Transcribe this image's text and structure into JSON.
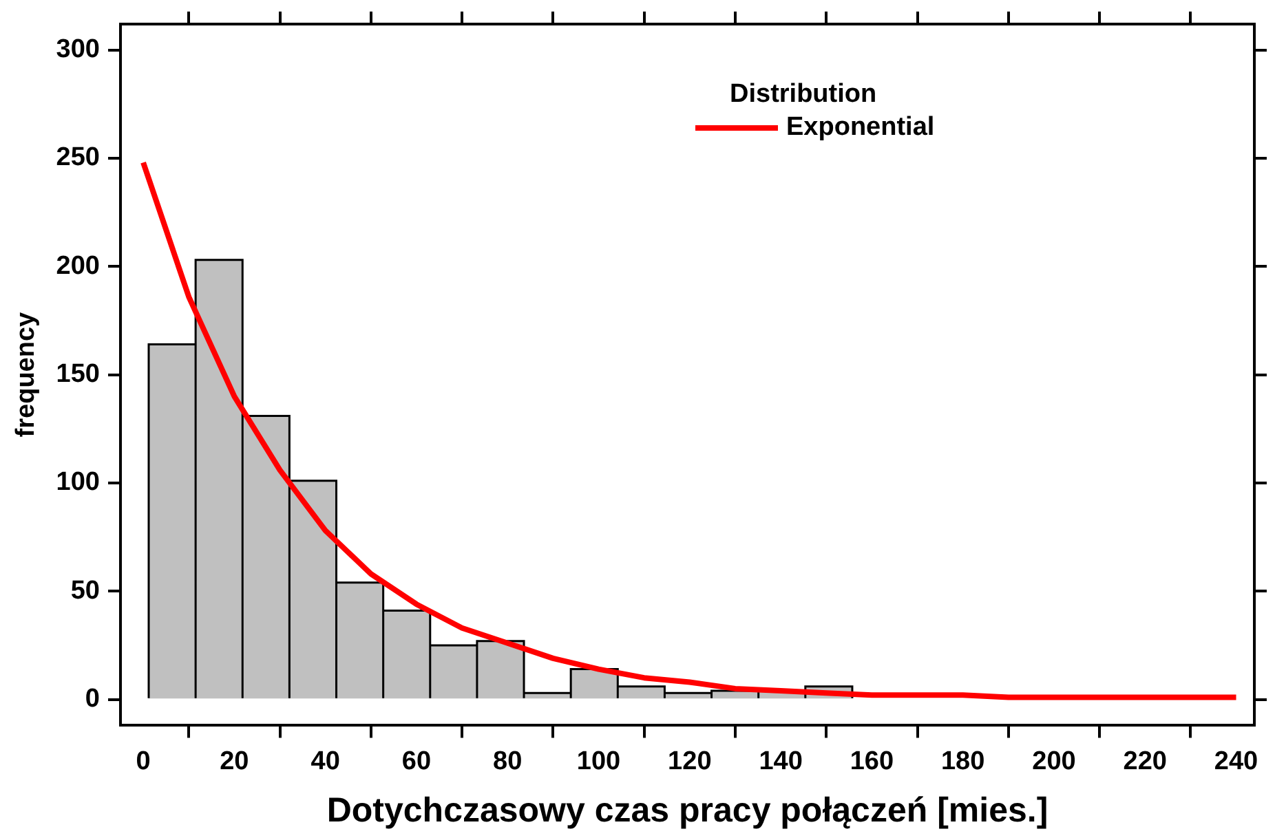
{
  "chart_data": {
    "type": "histogram",
    "xlabel": "Dotychczasowy czas pracy połączeń [mies.]",
    "ylabel": "frequency",
    "legend_title": "Distribution",
    "bins": [
      1.2,
      11.5,
      21.8,
      32.1,
      42.4,
      52.7,
      63.0,
      73.3,
      83.6,
      93.9,
      104.2,
      114.5,
      124.8,
      135.1,
      145.4,
      155.7
    ],
    "values": [
      164,
      203,
      131,
      101,
      54,
      41,
      25,
      27,
      3,
      14,
      6,
      3,
      4,
      4,
      6
    ],
    "color": "#c0c0c0",
    "series": [
      {
        "name": "Exponential",
        "type": "line",
        "color": "#ff0000",
        "x": [
          0,
          10,
          20,
          30,
          40,
          50,
          60,
          70,
          80,
          90,
          100,
          110,
          120,
          130,
          140,
          150,
          160,
          170,
          180,
          190,
          200,
          210,
          220,
          230,
          240
        ],
        "values": [
          248,
          186,
          140,
          106,
          78,
          58,
          44,
          33,
          26,
          19,
          14,
          10,
          8,
          5,
          4,
          3,
          2,
          2,
          2,
          1,
          1,
          1,
          1,
          1,
          1
        ]
      }
    ],
    "xlim": [
      -5,
      244
    ],
    "xticks": [
      0,
      20,
      40,
      60,
      80,
      100,
      120,
      140,
      160,
      180,
      200,
      220,
      240
    ],
    "ylim": [
      -12,
      312
    ],
    "yticks": [
      0,
      50,
      100,
      150,
      200,
      250,
      300
    ],
    "grid": false,
    "legend": "top",
    "marker": "none",
    "line_style": "solid"
  }
}
